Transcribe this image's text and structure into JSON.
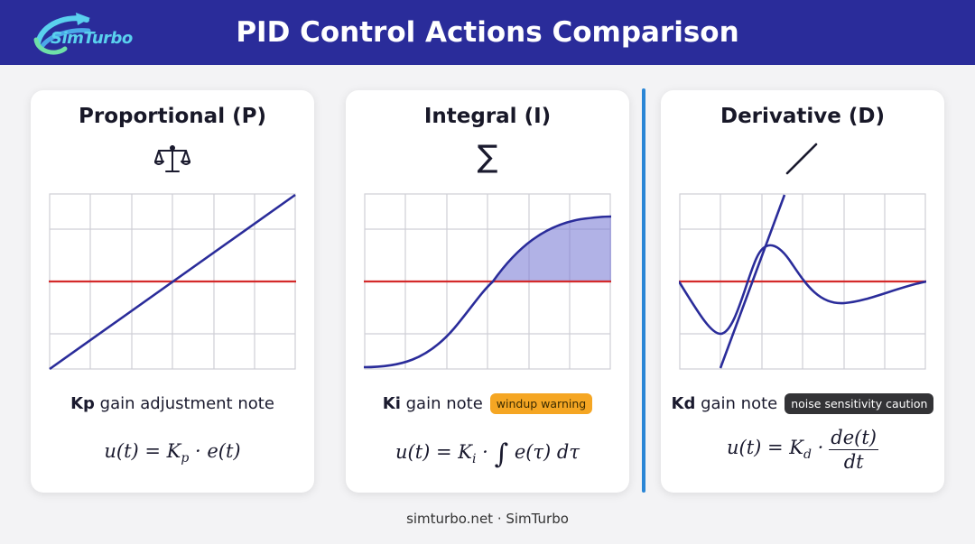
{
  "header": {
    "logo_text": "SimTurbo",
    "title": "PID Control Actions Comparison",
    "colors": {
      "background": "#2a2c9a",
      "logo": "#5ad0ee"
    }
  },
  "cards": [
    {
      "title": "Proportional (P)",
      "icon": "balance-scale-icon",
      "gain_symbol": "Kp",
      "note_text": "gain adjustment note",
      "badge": "",
      "formula": "u(t) = Kp · e(t)"
    },
    {
      "title": "Integral (I)",
      "icon": "sigma-icon",
      "gain_symbol": "Ki",
      "note_text": "gain note",
      "badge": "windup warning",
      "formula": "u(t) = Ki · ∫ e(τ) dτ"
    },
    {
      "title": "Derivative (D)",
      "icon": "slope-icon",
      "gain_symbol": "Kd",
      "note_text": "gain note",
      "badge": "noise sensitivity caution",
      "formula": "u(t) = Kd · de(t)/dt"
    }
  ],
  "colors": {
    "curve": "#2a2c9a",
    "reference_line": "#d42a2a",
    "shaded_area": "#7d7fd6",
    "divider": "#2a86d6",
    "warning_badge": "#f5a623",
    "caution_badge": "#333336"
  },
  "footer": {
    "text": "simturbo.net · SimTurbo"
  }
}
